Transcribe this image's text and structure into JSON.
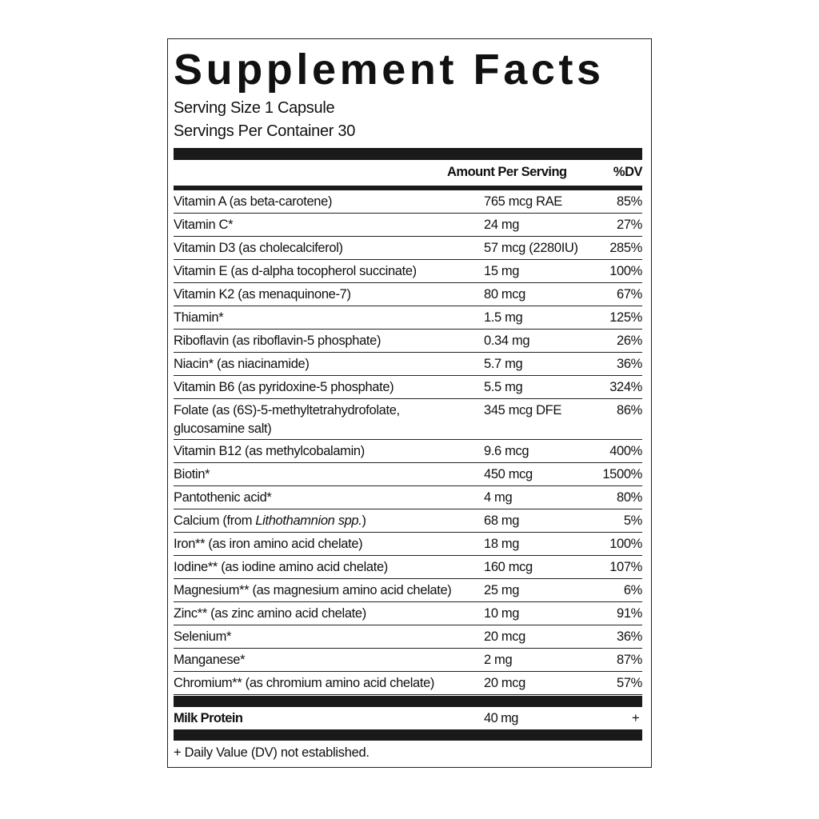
{
  "title": "Supplement Facts",
  "serving_size": "Serving Size 1 Capsule",
  "servings_per_container": "Servings Per Container 30",
  "header": {
    "amount": "Amount Per Serving",
    "dv": "%DV"
  },
  "rows": [
    {
      "name": "Vitamin A (as beta-carotene)",
      "amount": "765 mcg RAE",
      "dv": "85%"
    },
    {
      "name": "Vitamin C*",
      "amount": "24 mg",
      "dv": "27%"
    },
    {
      "name": "Vitamin D3 (as cholecalciferol)",
      "amount": "57 mcg (2280IU)",
      "dv": "285%"
    },
    {
      "name": "Vitamin E (as d-alpha tocopherol succinate)",
      "amount": "15 mg",
      "dv": "100%"
    },
    {
      "name": "Vitamin K2 (as menaquinone-7)",
      "amount": "80 mcg",
      "dv": "67%"
    },
    {
      "name": "Thiamin*",
      "amount": "1.5 mg",
      "dv": "125%"
    },
    {
      "name": "Riboflavin (as riboflavin-5 phosphate)",
      "amount": "0.34 mg",
      "dv": "26%"
    },
    {
      "name": "Niacin* (as niacinamide)",
      "amount": "5.7 mg",
      "dv": "36%"
    },
    {
      "name": "Vitamin B6 (as pyridoxine-5 phosphate)",
      "amount": "5.5 mg",
      "dv": "324%"
    },
    {
      "name": "Folate (as (6S)-5-methyltetrahydrofolate, glucosamine salt)",
      "amount": "345 mcg DFE",
      "dv": "86%"
    },
    {
      "name": "Vitamin B12 (as methylcobalamin)",
      "amount": "9.6 mcg",
      "dv": "400%"
    },
    {
      "name": "Biotin*",
      "amount": "450 mcg",
      "dv": "1500%"
    },
    {
      "name": "Pantothenic acid*",
      "amount": "4 mg",
      "dv": "80%"
    },
    {
      "name": "Calcium (from ",
      "italic": "Lithothamnion spp.",
      "name_end": ")",
      "amount": "68 mg",
      "dv": "5%"
    },
    {
      "name": "Iron** (as iron amino acid chelate)",
      "amount": "18 mg",
      "dv": "100%"
    },
    {
      "name": "Iodine** (as iodine amino acid chelate)",
      "amount": "160 mcg",
      "dv": "107%"
    },
    {
      "name": "Magnesium** (as magnesium amino acid chelate)",
      "amount": "25 mg",
      "dv": "6%"
    },
    {
      "name": "Zinc** (as zinc amino acid chelate)",
      "amount": "10 mg",
      "dv": "91%"
    },
    {
      "name": "Selenium*",
      "amount": "20 mcg",
      "dv": "36%"
    },
    {
      "name": "Manganese*",
      "amount": "2 mg",
      "dv": "87%"
    },
    {
      "name": "Chromium** (as chromium amino acid chelate)",
      "amount": "20 mcg",
      "dv": "57%"
    }
  ],
  "blend": {
    "name": "Milk Protein",
    "amount": "40 mg",
    "dv": "+"
  },
  "footnote": "+ Daily Value (DV) not established."
}
